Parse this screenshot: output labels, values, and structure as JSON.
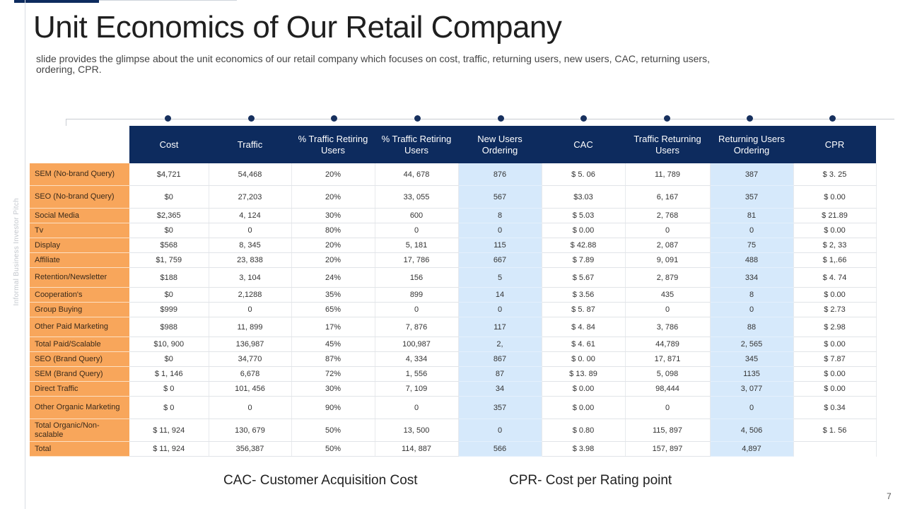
{
  "slide": {
    "title": "Unit Economics of Our Retail Company",
    "subtitle": "slide provides the glimpse about the unit economics of our retail company which focuses on cost, traffic, returning users, new users, CAC, returning users, ordering, CPR.",
    "vertical_label": "Informal Business Investor Pitch",
    "page_number": "7",
    "footnotes": {
      "cac": "CAC- Customer Acquisition Cost",
      "cpr": "CPR- Cost per Rating point"
    }
  },
  "table": {
    "headers": [
      "Cost",
      "Traffic",
      "% Traffic  Retiring Users",
      "% Traffic  Retiring Users",
      "New Users Ordering",
      "CAC",
      "Traffic  Returning Users",
      "Returning Users Ordering",
      "CPR"
    ],
    "rows": [
      {
        "label": "SEM  (No-brand Query)",
        "cells": [
          "$4,721",
          "54,468",
          "20%",
          "44, 678",
          "876",
          "$ 5. 06",
          "11, 789",
          "387",
          "$ 3. 25"
        ]
      },
      {
        "label": "SEO  (No-brand Query)",
        "cells": [
          "$0",
          "27,203",
          "20%",
          "33, 055",
          "567",
          "$3.03",
          "6, 167",
          "357",
          "$ 0.00"
        ]
      },
      {
        "label": "Social Media",
        "cells": [
          "$2,365",
          "4, 124",
          "30%",
          "600",
          "8",
          "$ 5.03",
          "2, 768",
          "81",
          "$ 21.89"
        ]
      },
      {
        "label": "Tv",
        "cells": [
          "$0",
          "0",
          "80%",
          "0",
          "0",
          "$ 0.00",
          "0",
          "0",
          "$ 0.00"
        ]
      },
      {
        "label": "Display",
        "cells": [
          "$568",
          "8, 345",
          "20%",
          "5, 181",
          "115",
          "$ 42.88",
          "2, 087",
          "75",
          "$ 2, 33"
        ]
      },
      {
        "label": "Affiliate",
        "cells": [
          "$1, 759",
          "23, 838",
          "20%",
          "17, 786",
          "667",
          "$ 7.89",
          "9, 091",
          "488",
          "$ 1,.66"
        ]
      },
      {
        "label": "Retention/Newsletter",
        "cells": [
          "$188",
          "3, 104",
          "24%",
          "156",
          "5",
          "$ 5.67",
          "2, 879",
          "334",
          "$ 4. 74"
        ]
      },
      {
        "label": "Cooperation's",
        "cells": [
          "$0",
          "2,1288",
          "35%",
          "899",
          "14",
          "$ 3.56",
          "435",
          "8",
          "$ 0.00"
        ]
      },
      {
        "label": "Group Buying",
        "cells": [
          "$999",
          "0",
          "65%",
          "0",
          "0",
          "$ 5. 87",
          "0",
          "0",
          "$ 2.73"
        ]
      },
      {
        "label": "Other Paid Marketing",
        "cells": [
          "$988",
          "11, 899",
          "17%",
          "7, 876",
          "117",
          "$ 4. 84",
          "3, 786",
          "88",
          "$ 2.98"
        ]
      },
      {
        "label": "Total Paid/Scalable",
        "cells": [
          "$10, 900",
          "136,987",
          "45%",
          "100,987",
          "2,",
          "$ 4. 61",
          "44,789",
          "2, 565",
          "$ 0.00"
        ]
      },
      {
        "label": "SEO  (Brand Query)",
        "cells": [
          "$0",
          "34,770",
          "87%",
          "4, 334",
          "867",
          "$ 0. 00",
          "17, 871",
          "345",
          "$ 7.87"
        ]
      },
      {
        "label": "SEM  (Brand Query)",
        "cells": [
          "$ 1, 146",
          "6,678",
          "72%",
          "1, 556",
          "87",
          "$ 13. 89",
          "5, 098",
          "1135",
          "$ 0.00"
        ]
      },
      {
        "label": "Direct Traffic",
        "cells": [
          "$ 0",
          "101, 456",
          "30%",
          "7, 109",
          "34",
          "$ 0.00",
          "98,444",
          "3, 077",
          "$ 0.00"
        ]
      },
      {
        "label": "Other Organic Marketing",
        "cells": [
          "$ 0",
          "0",
          "90%",
          "0",
          "357",
          "$ 0.00",
          "0",
          "0",
          "$ 0.34"
        ]
      },
      {
        "label": "Total Organic/Non-scalable",
        "cells": [
          "$ 11, 924",
          "130, 679",
          "50%",
          "13, 500",
          "0",
          "$ 0.80",
          "115, 897",
          "4, 506",
          "$ 1. 56"
        ]
      },
      {
        "label": "Total",
        "cells": [
          "$ 11, 924",
          "356,387",
          "50%",
          "114, 887",
          "566",
          "$ 3.98",
          "157, 897",
          "4,897",
          ""
        ]
      }
    ]
  },
  "colors": {
    "header_bg": "#0d2b5e",
    "label_bg": "#f8a65b",
    "highlight_bg": "#d6e9fb",
    "dot": "#17305e"
  }
}
